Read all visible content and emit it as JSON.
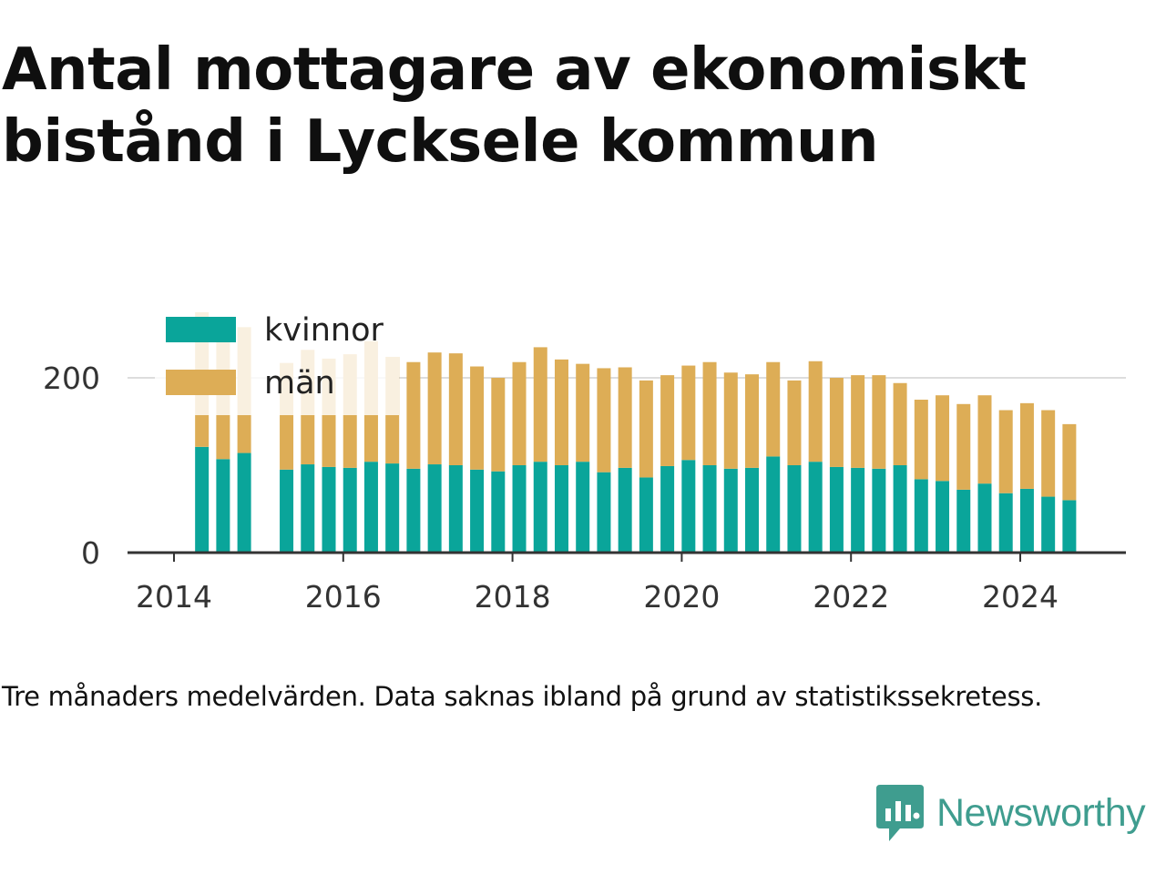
{
  "title": "Antal mottagare av ekonomiskt bistånd i Lycksele kommun",
  "caption": "Tre månaders medelvärden. Data saknas ibland på grund av statistikssekretess.",
  "brand": {
    "name": "Newsworthy",
    "icon": "newsworthy-logo-icon",
    "color": "#3f9d8f"
  },
  "colors": {
    "kvinnor": "#0aa59a",
    "man": "#ddad56",
    "grid": "#dddddd",
    "axis": "#333333",
    "legend_bg": "#ffffff"
  },
  "chart_data": {
    "type": "bar",
    "stacked": true,
    "xlabel": "",
    "ylabel": "",
    "ylim": [
      0,
      280
    ],
    "xlim": [
      2013.75,
      2025.2
    ],
    "yticks": [
      0,
      200
    ],
    "xticks": [
      2014,
      2016,
      2018,
      2020,
      2022,
      2024
    ],
    "grid": "y",
    "legend": "top-left",
    "x": [
      2014.33,
      2014.58,
      2014.83,
      2015.33,
      2015.58,
      2015.83,
      2016.08,
      2016.33,
      2016.58,
      2016.83,
      2017.08,
      2017.33,
      2017.58,
      2017.83,
      2018.08,
      2018.33,
      2018.58,
      2018.83,
      2019.08,
      2019.33,
      2019.58,
      2019.83,
      2020.08,
      2020.33,
      2020.58,
      2020.83,
      2021.08,
      2021.33,
      2021.58,
      2021.83,
      2022.08,
      2022.33,
      2022.58,
      2022.83,
      2023.08,
      2023.33,
      2023.58,
      2023.83,
      2024.08,
      2024.33,
      2024.58
    ],
    "series": [
      {
        "name": "kvinnor",
        "values": [
          121,
          107,
          114,
          95,
          101,
          98,
          97,
          104,
          102,
          96,
          101,
          100,
          95,
          93,
          100,
          104,
          100,
          104,
          92,
          97,
          86,
          99,
          106,
          100,
          96,
          97,
          110,
          100,
          104,
          98,
          97,
          96,
          100,
          84,
          82,
          72,
          79,
          68,
          73,
          64,
          60
        ]
      },
      {
        "name": "män",
        "values": [
          154,
          146,
          144,
          122,
          131,
          124,
          130,
          138,
          122,
          122,
          128,
          128,
          118,
          107,
          118,
          131,
          121,
          112,
          119,
          115,
          111,
          104,
          108,
          118,
          110,
          107,
          108,
          97,
          115,
          102,
          106,
          107,
          94,
          91,
          98,
          98,
          101,
          95,
          98,
          99,
          87
        ]
      }
    ]
  }
}
